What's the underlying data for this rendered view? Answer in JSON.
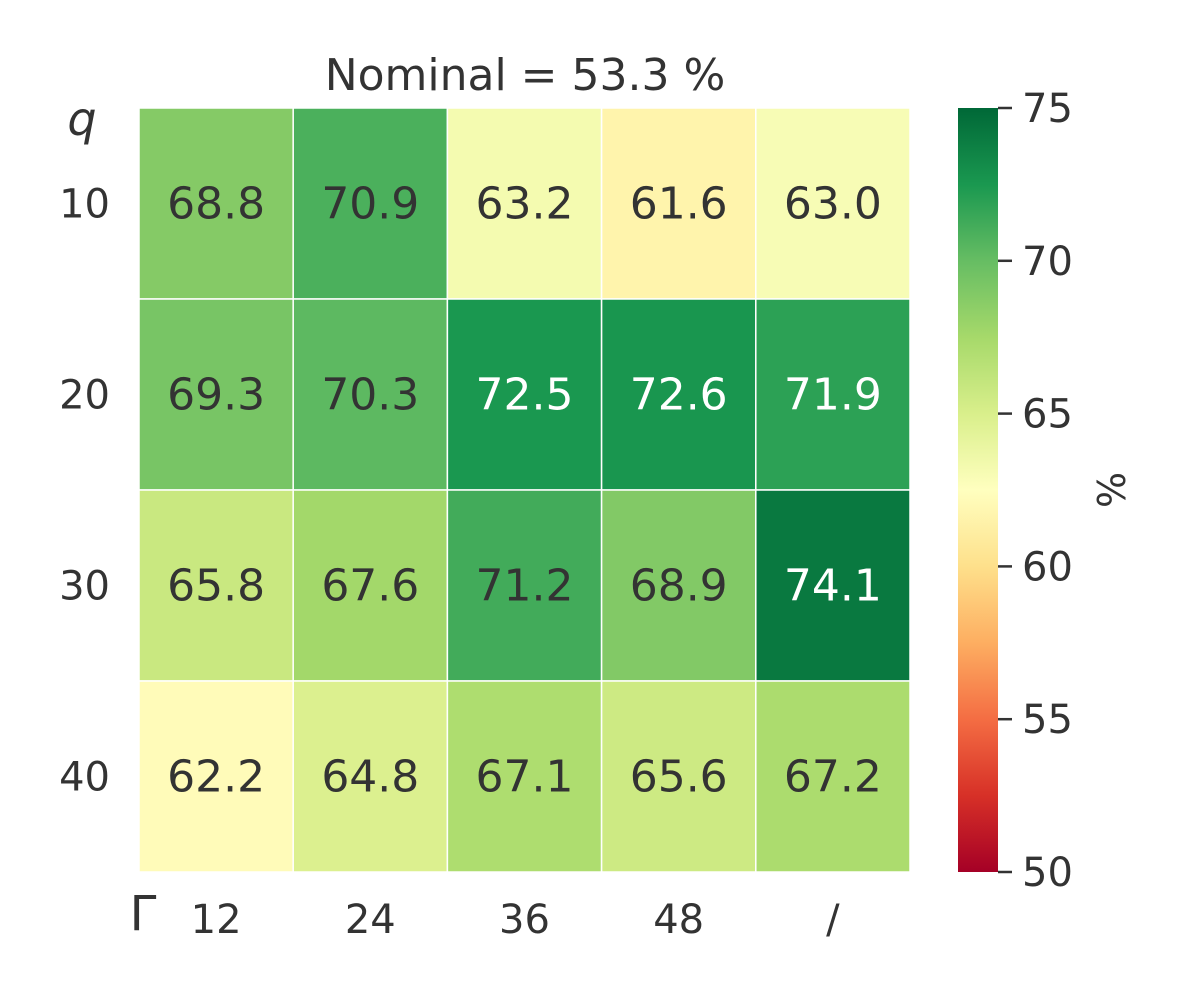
{
  "chart_data": {
    "type": "heatmap",
    "title": "Nominal = 53.3 %",
    "ylabel": "q",
    "xlabel": "Γ",
    "rows": [
      "10",
      "20",
      "30",
      "40"
    ],
    "columns": [
      "12",
      "24",
      "36",
      "48",
      "/"
    ],
    "values": [
      [
        68.8,
        70.9,
        63.2,
        61.6,
        63.0
      ],
      [
        69.3,
        70.3,
        72.5,
        72.6,
        71.9
      ],
      [
        65.8,
        67.6,
        71.2,
        68.9,
        74.1
      ],
      [
        62.2,
        64.8,
        67.1,
        65.6,
        67.2
      ]
    ],
    "cell_labels": [
      [
        "68.8",
        "70.9",
        "63.2",
        "61.6",
        "63.0"
      ],
      [
        "69.3",
        "70.3",
        "72.5",
        "72.6",
        "71.9"
      ],
      [
        "65.8",
        "67.6",
        "71.2",
        "68.9",
        "74.1"
      ],
      [
        "62.2",
        "64.8",
        "67.1",
        "65.6",
        "67.2"
      ]
    ],
    "colorbar": {
      "label": "%",
      "range": [
        50,
        75
      ],
      "ticks": [
        "50",
        "55",
        "60",
        "65",
        "70",
        "75"
      ],
      "colormap": "RdYlGn",
      "stops": [
        "#a50026",
        "#d73027",
        "#f46d43",
        "#fdae61",
        "#fee08b",
        "#ffffbf",
        "#d9ef8b",
        "#a6d96a",
        "#66bd63",
        "#1a9850",
        "#006837"
      ]
    },
    "grid": false
  }
}
